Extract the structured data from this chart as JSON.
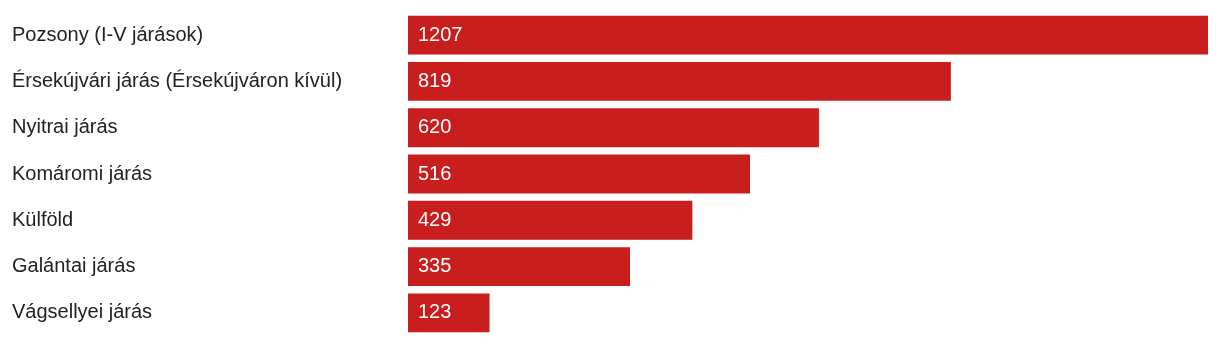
{
  "chart_data": {
    "type": "bar",
    "orientation": "horizontal",
    "categories": [
      "Pozsony (I-V járások)",
      "Érsekújvári járás (Érsekújváron kívül)",
      "Nyitrai járás",
      "Komáromi járás",
      "Külföld",
      "Galántai járás",
      "Vágsellyei járás"
    ],
    "values": [
      1207,
      819,
      620,
      516,
      429,
      335,
      123
    ],
    "color": "#c81e1e",
    "xlim": [
      0,
      1207
    ],
    "data_labels": true,
    "legend": false,
    "tick_labels": "y"
  }
}
